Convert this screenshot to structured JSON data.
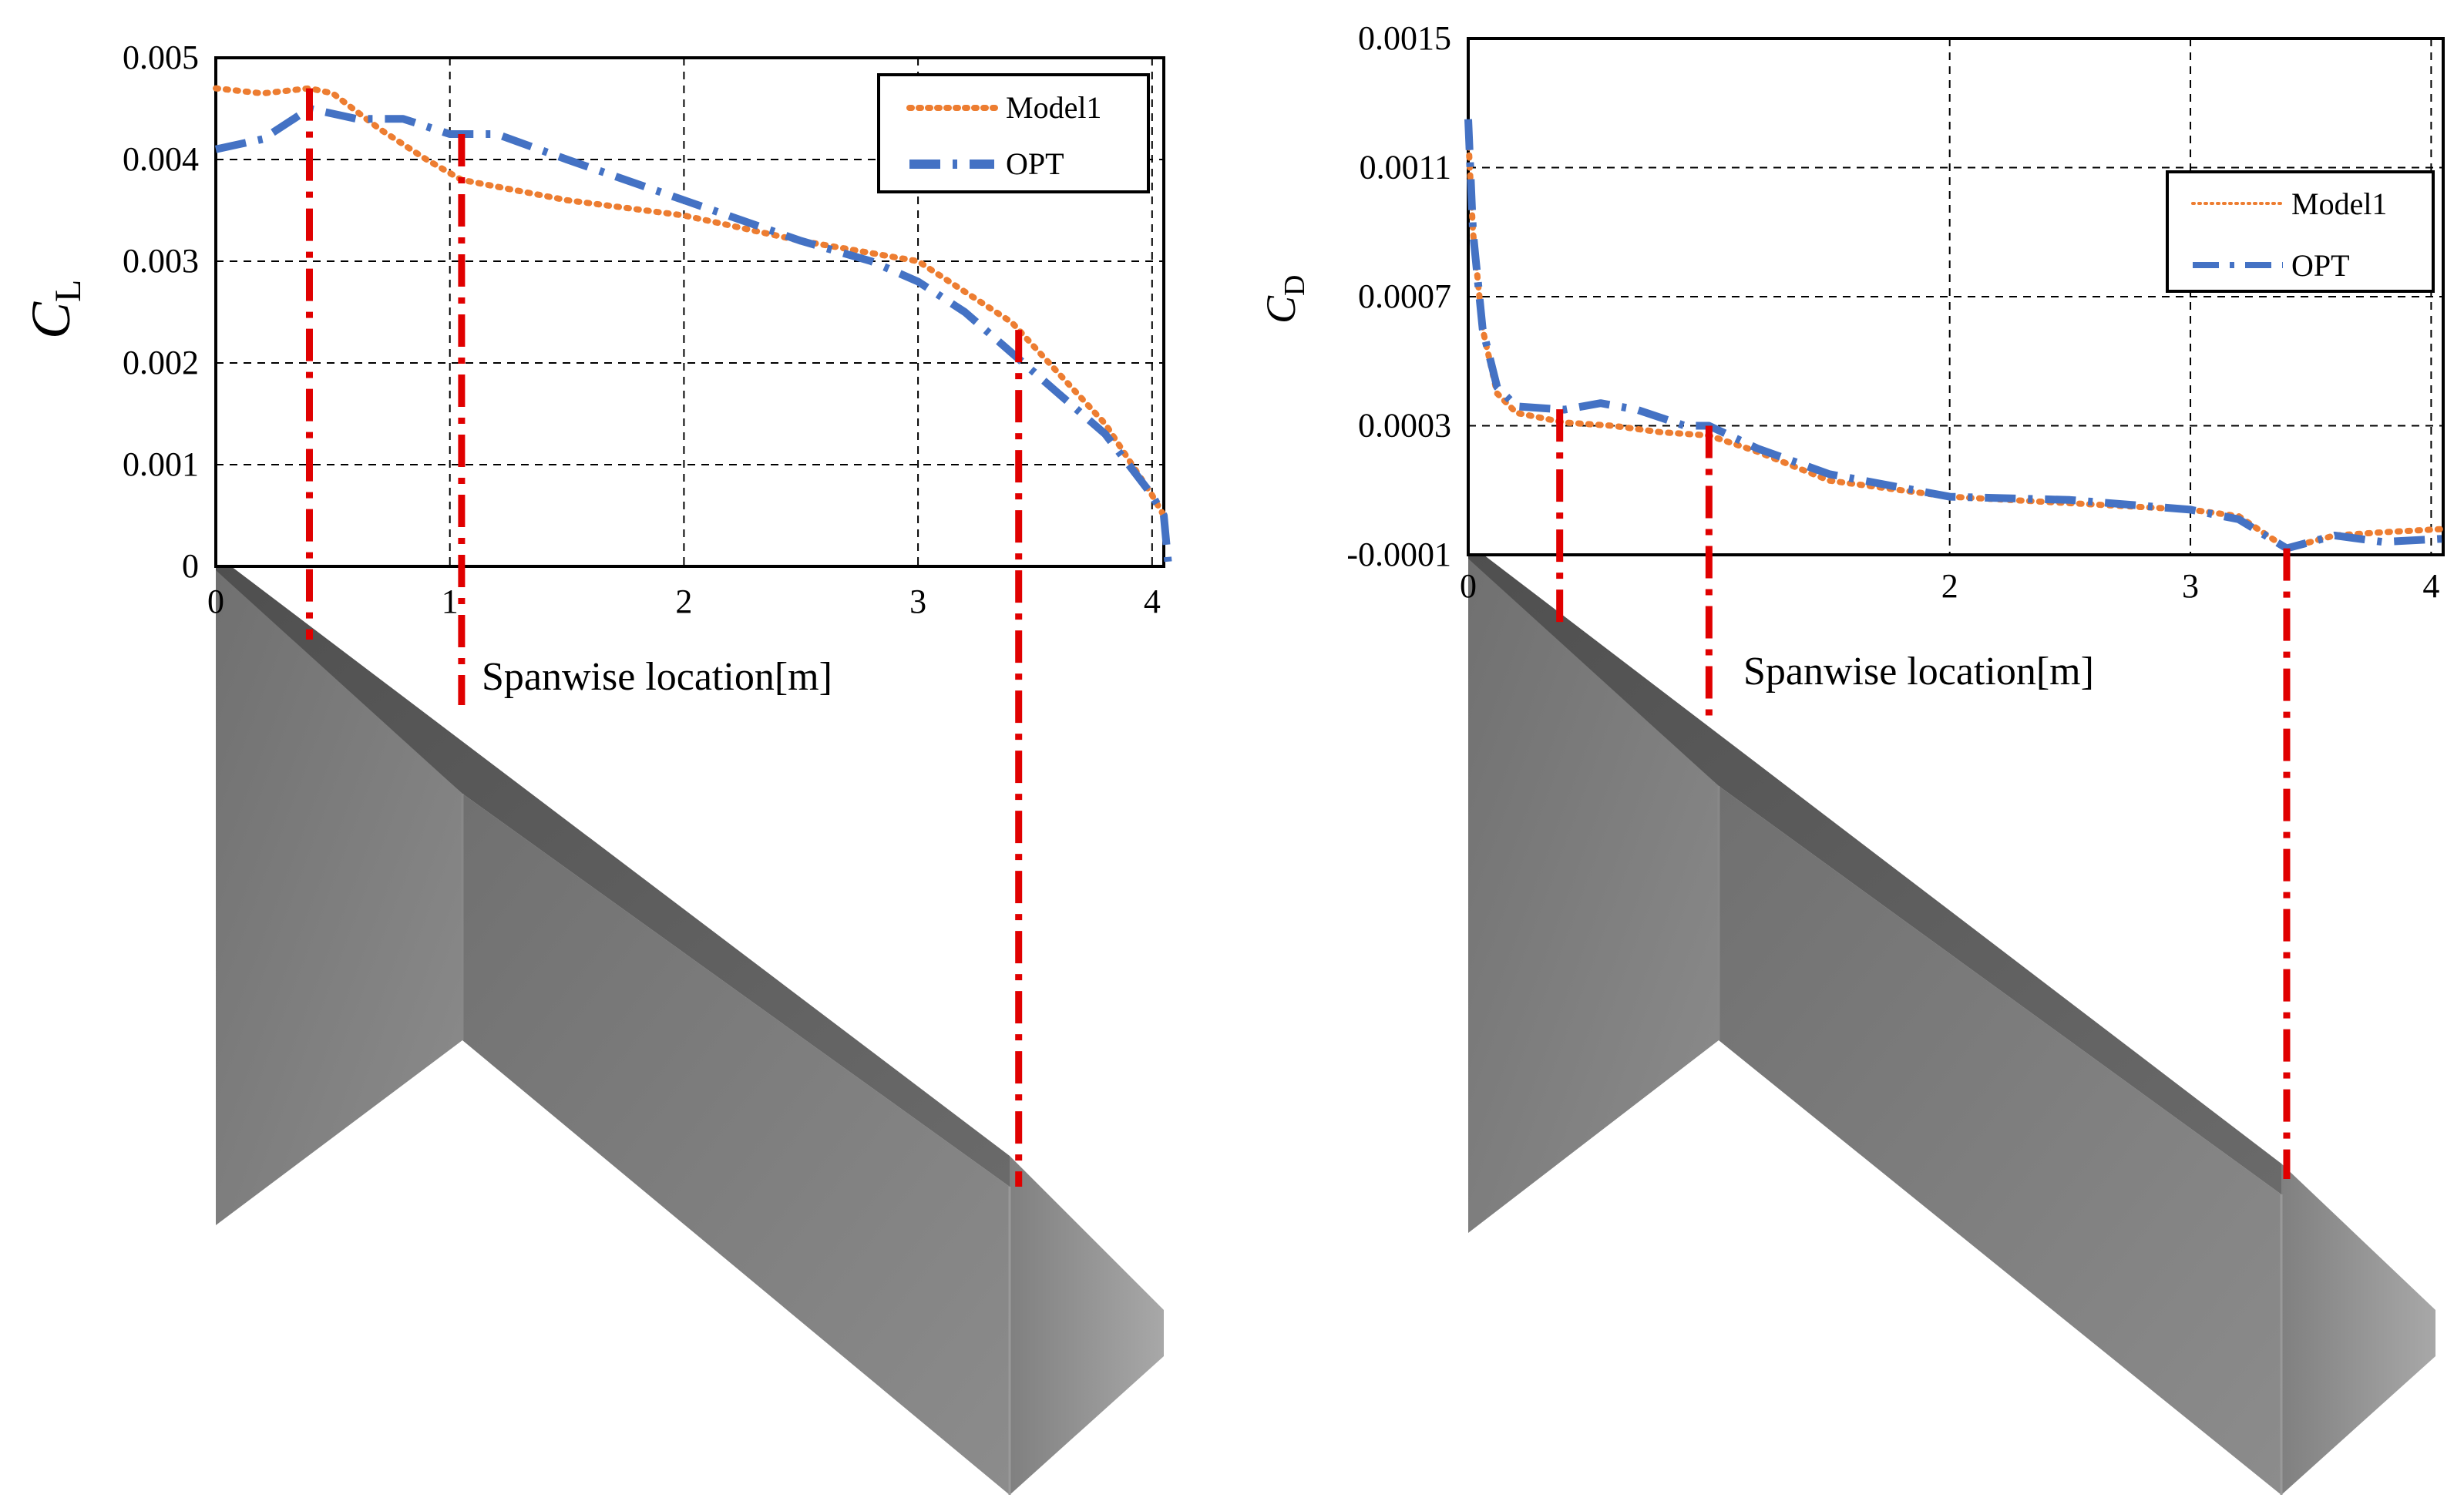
{
  "chart_data": [
    {
      "type": "line",
      "title": "",
      "xlabel": "Spanwise location[m]",
      "ylabel": "C",
      "ylabel_subscript": "L",
      "xlim": [
        0,
        4.05
      ],
      "ylim": [
        0,
        0.005
      ],
      "x_ticks": [
        0,
        1,
        2,
        3,
        4
      ],
      "y_ticks": [
        "0",
        "0.001",
        "0.002",
        "0.003",
        "0.004",
        "0.005"
      ],
      "grid": true,
      "legend_position": "top-right",
      "series": [
        {
          "name": "Model1",
          "color": "#ED7D31",
          "style": "dotted",
          "x": [
            0,
            0.2,
            0.4,
            0.5,
            0.7,
            0.9,
            1.05,
            1.5,
            2.0,
            2.5,
            3.0,
            3.2,
            3.4,
            3.6,
            3.8,
            4.0,
            4.05
          ],
          "y": [
            0.0047,
            0.00465,
            0.0047,
            0.00465,
            0.0043,
            0.004,
            0.0038,
            0.0036,
            0.00345,
            0.0032,
            0.003,
            0.0027,
            0.0024,
            0.0019,
            0.0014,
            0.0007,
            0.0005
          ]
        },
        {
          "name": "OPT",
          "color": "#4472C4",
          "style": "dash-dot",
          "x": [
            0,
            0.2,
            0.4,
            0.6,
            0.8,
            1.0,
            1.2,
            1.5,
            2.0,
            2.5,
            2.8,
            3.0,
            3.2,
            3.4,
            3.6,
            3.8,
            4.0,
            4.05,
            4.07
          ],
          "y": [
            0.0041,
            0.0042,
            0.0045,
            0.0044,
            0.0044,
            0.00425,
            0.00425,
            0.004,
            0.0036,
            0.0032,
            0.003,
            0.0028,
            0.0025,
            0.0021,
            0.0017,
            0.0013,
            0.0007,
            0.0005,
            0
          ]
        }
      ],
      "markers_x": [
        0.4,
        1.05,
        3.43
      ]
    },
    {
      "type": "line",
      "title": "",
      "xlabel": "Spanwise location[m]",
      "ylabel": "C",
      "ylabel_subscript": "D",
      "xlim": [
        0,
        4.05
      ],
      "ylim": [
        -0.0001,
        0.0015
      ],
      "x_ticks": [
        0,
        2,
        3,
        4
      ],
      "y_ticks": [
        "-0.0001",
        "0.0003",
        "0.0007",
        "0.0011",
        "0.0015"
      ],
      "grid": true,
      "legend_position": "top-right",
      "series": [
        {
          "name": "Model1",
          "color": "#ED7D31",
          "style": "dotted",
          "x": [
            0,
            0.02,
            0.06,
            0.12,
            0.2,
            0.4,
            0.6,
            0.8,
            1.0,
            1.2,
            1.5,
            2.0,
            2.5,
            3.0,
            3.2,
            3.4,
            3.6,
            3.8,
            4.05
          ],
          "y": [
            0.0012,
            0.0009,
            0.0006,
            0.0004,
            0.00034,
            0.00031,
            0.0003,
            0.00028,
            0.00027,
            0.00022,
            0.00013,
            8e-05,
            6e-05,
            4e-05,
            2e-05,
            -8e-05,
            -4e-05,
            -3e-05,
            -2e-05
          ]
        },
        {
          "name": "OPT",
          "color": "#4472C4",
          "style": "dash-dot",
          "x": [
            0,
            0.02,
            0.06,
            0.12,
            0.2,
            0.4,
            0.55,
            0.7,
            0.9,
            1.0,
            1.2,
            1.5,
            2.0,
            2.5,
            3.0,
            3.2,
            3.4,
            3.6,
            3.8,
            4.05
          ],
          "y": [
            0.00125,
            0.0009,
            0.0006,
            0.00042,
            0.00036,
            0.00035,
            0.00037,
            0.00035,
            0.0003,
            0.0003,
            0.00023,
            0.00015,
            8e-05,
            7e-05,
            4e-05,
            1e-05,
            -8e-05,
            -4e-05,
            -6e-05,
            -5e-05
          ]
        }
      ],
      "markers_x": [
        0.38,
        1.0,
        3.4
      ]
    }
  ],
  "colors": {
    "model1": "#ED7D31",
    "opt": "#4472C4",
    "marker": "#E00000",
    "wing_dark": "#5e5e5e",
    "wing_mid": "#7a7a7a",
    "wing_light": "#9a9a9a"
  }
}
